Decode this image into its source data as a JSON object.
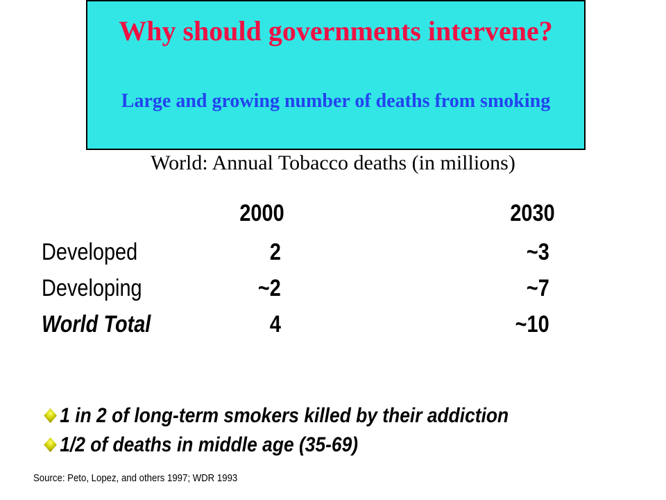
{
  "title": {
    "main": "Why should governments intervene?",
    "sub": "Large and growing number of deaths from smoking"
  },
  "table": {
    "caption": "World: Annual Tobacco deaths (in millions)",
    "columns": [
      "2000",
      "2030"
    ],
    "rows": [
      {
        "label": "Developed",
        "values": [
          "2",
          "~3"
        ]
      },
      {
        "label": "Developing",
        "values": [
          "~2",
          "~7"
        ]
      },
      {
        "label": "World Total",
        "values": [
          "4",
          "~10"
        ]
      }
    ]
  },
  "bullets": [
    "1 in 2 of long-term smokers killed by their addiction",
    "1/2 of deaths in middle age (35-69)"
  ],
  "source": "Source: Peto, Lopez, and others 1997; WDR 1993",
  "colors": {
    "title_background": "#33e6e6",
    "title_main": "#ee1144",
    "title_sub": "#2244ee",
    "bullet": "#cccc00"
  }
}
